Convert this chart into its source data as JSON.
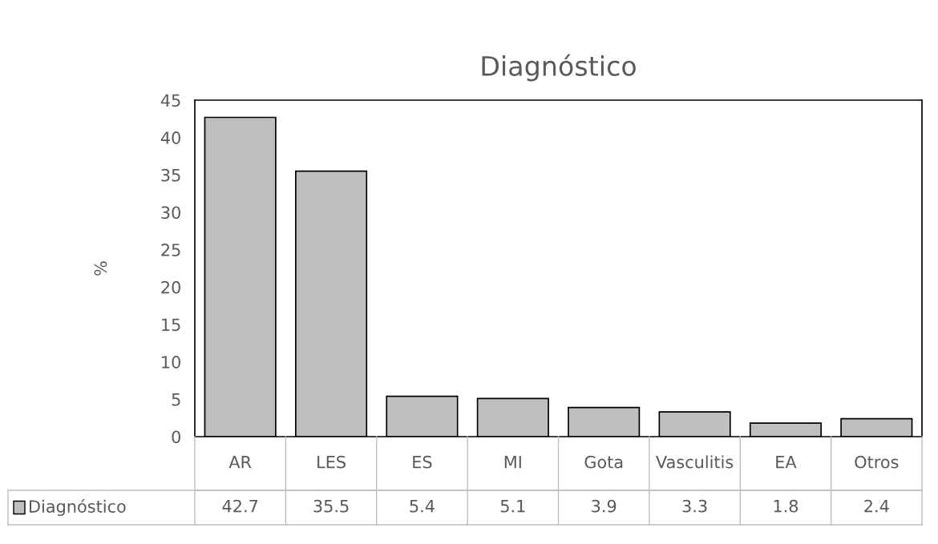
{
  "chart_data": {
    "type": "bar",
    "title": "Diagnóstico",
    "ylabel": "%",
    "categories": [
      "AR",
      "LES",
      "ES",
      "MI",
      "Gota",
      "Vasculitis",
      "EA",
      "Otros"
    ],
    "series": [
      {
        "name": "Diagnóstico",
        "color": "#bfbfbf",
        "values": [
          42.7,
          35.5,
          5.4,
          5.1,
          3.9,
          3.3,
          1.8,
          2.4
        ]
      }
    ],
    "ylim": [
      0,
      45
    ],
    "yticks": [
      0,
      5,
      10,
      15,
      20,
      25,
      30,
      35,
      40,
      45
    ],
    "grid": false,
    "data_labels": true,
    "legend": "bottom"
  }
}
